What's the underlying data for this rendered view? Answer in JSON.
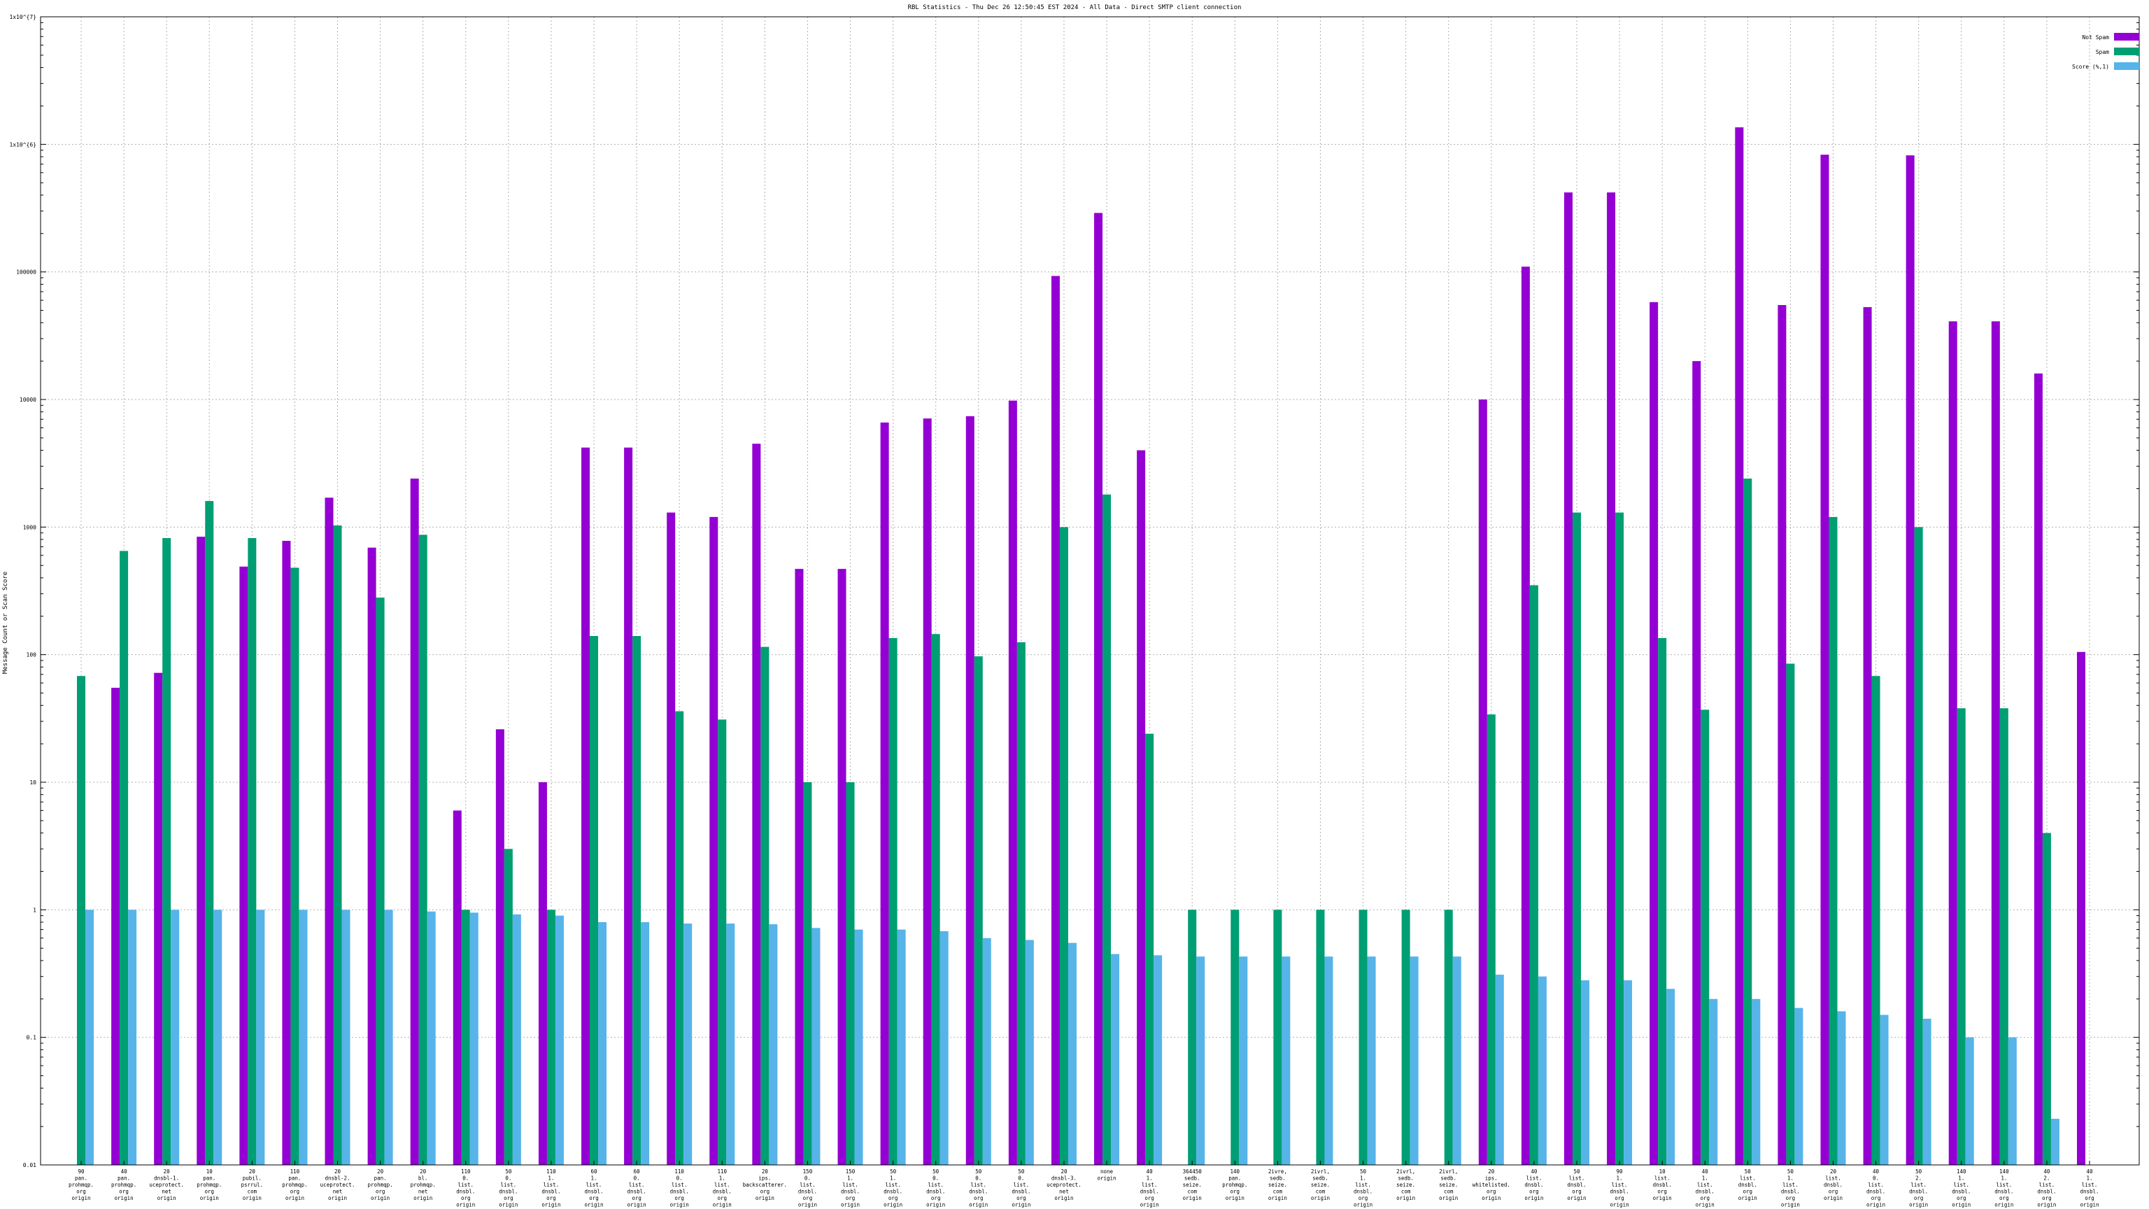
{
  "chart_data": {
    "type": "bar",
    "title": "RBL Statistics - Thu Dec 26 12:50:45 EST 2024 - All Data - Direct SMTP client connection",
    "ylabel": "Message Count or Scan Score",
    "yscale": "log",
    "ylim": [
      0.01,
      10000000
    ],
    "ytick_labels": [
      "0.01",
      "0.1",
      "1",
      "10",
      "100",
      "1000",
      "10000",
      "100000",
      "1x10^{6}",
      "1x10^{7}"
    ],
    "grid": true,
    "legend_position": "top-right",
    "categories": [
      [
        "90",
        "pan.",
        "prohmqp.",
        "org",
        "origin"
      ],
      [
        "40",
        "pan.",
        "prohmqp.",
        "org",
        "origin"
      ],
      [
        "20",
        "dnsbl-1.",
        "uceprotect.",
        "net",
        "origin"
      ],
      [
        "10",
        "pan.",
        "prohmqp.",
        "org",
        "origin"
      ],
      [
        "20",
        "pubil.",
        "psrrul.",
        "com",
        "origin"
      ],
      [
        "110",
        "pan.",
        "prohmqp.",
        "org",
        "origin"
      ],
      [
        "20",
        "dnsbl-2.",
        "uceprotect.",
        "net",
        "origin"
      ],
      [
        "20",
        "pan.",
        "prohmqp.",
        "org",
        "origin"
      ],
      [
        "20",
        "bl.",
        "prohmqp.",
        "net",
        "origin"
      ],
      [
        "110",
        "0.",
        "list.",
        "dnsbl.",
        "org",
        "origin"
      ],
      [
        "50",
        "0.",
        "list.",
        "dnsbl.",
        "org",
        "origin"
      ],
      [
        "110",
        "1.",
        "list.",
        "dnsbl.",
        "org",
        "origin"
      ],
      [
        "60",
        "1.",
        "list.",
        "dnsbl.",
        "org",
        "origin"
      ],
      [
        "60",
        "0.",
        "list.",
        "dnsbl.",
        "org",
        "origin"
      ],
      [
        "110",
        "0.",
        "list.",
        "dnsbl.",
        "org",
        "origin"
      ],
      [
        "110",
        "1.",
        "list.",
        "dnsbl.",
        "org",
        "origin"
      ],
      [
        "20",
        "ips.",
        "backscatterer.",
        "org",
        "origin"
      ],
      [
        "150",
        "0.",
        "list.",
        "dnsbl.",
        "org",
        "origin"
      ],
      [
        "150",
        "1.",
        "list.",
        "dnsbl.",
        "org",
        "origin"
      ],
      [
        "50",
        "1.",
        "list.",
        "dnsbl.",
        "org",
        "origin"
      ],
      [
        "50",
        "0.",
        "list.",
        "dnsbl.",
        "org",
        "origin"
      ],
      [
        "50",
        "0.",
        "list.",
        "dnsbl.",
        "org",
        "origin"
      ],
      [
        "50",
        "0.",
        "list.",
        "dnsbl.",
        "org",
        "origin"
      ],
      [
        "20",
        "dnsbl-3.",
        "uceprotect.",
        "net",
        "origin"
      ],
      [
        "none",
        "origin"
      ],
      [
        "40",
        "1.",
        "list.",
        "dnsbl.",
        "org",
        "origin"
      ],
      [
        "364450",
        "sedb.",
        "seize.",
        "com",
        "origin"
      ],
      [
        "140",
        "pan.",
        "prohmqp.",
        "org",
        "origin"
      ],
      [
        "2ivre,",
        "sedb.",
        "seize.",
        "com",
        "origin"
      ],
      [
        "2ivrl,",
        "sedb.",
        "seize.",
        "com",
        "origin"
      ],
      [
        "50",
        "1.",
        "list.",
        "dnsbl.",
        "org",
        "origin"
      ],
      [
        "2ivrl,",
        "sedb.",
        "seize.",
        "com",
        "origin"
      ],
      [
        "2ivrl,",
        "sedb.",
        "seize.",
        "com",
        "origin"
      ],
      [
        "20",
        "ips.",
        "whitelisted.",
        "org",
        "origin"
      ],
      [
        "40",
        "list.",
        "dnsbl.",
        "org",
        "origin"
      ],
      [
        "50",
        "list.",
        "dnsbl.",
        "org",
        "origin"
      ],
      [
        "90",
        "1.",
        "list.",
        "dnsbl.",
        "org",
        "origin"
      ],
      [
        "10",
        "list.",
        "dnsbl.",
        "org",
        "origin"
      ],
      [
        "40",
        "1.",
        "list.",
        "dnsbl.",
        "org",
        "origin"
      ],
      [
        "50",
        "list.",
        "dnsbl.",
        "org",
        "origin"
      ],
      [
        "50",
        "1.",
        "list.",
        "dnsbl.",
        "org",
        "origin"
      ],
      [
        "20",
        "list.",
        "dnsbl.",
        "org",
        "origin"
      ],
      [
        "40",
        "0.",
        "list.",
        "dnsbl.",
        "org",
        "origin"
      ],
      [
        "50",
        "2.",
        "list.",
        "dnsbl.",
        "org",
        "origin"
      ],
      [
        "140",
        "1.",
        "list.",
        "dnsbl.",
        "org",
        "origin"
      ],
      [
        "140",
        "1.",
        "list.",
        "dnsbl.",
        "org",
        "origin"
      ],
      [
        "40",
        "2.",
        "list.",
        "dnsbl.",
        "org",
        "origin"
      ],
      [
        "40",
        "1.",
        "list.",
        "dnsbl.",
        "org",
        "origin"
      ]
    ],
    "series": [
      {
        "name": "Not Spam",
        "color": "#9400d3",
        "values": [
          null,
          55,
          72,
          840,
          490,
          780,
          1700,
          690,
          2400,
          6,
          26,
          10,
          4200,
          4200,
          1300,
          1200,
          4500,
          470,
          470,
          6600,
          7100,
          7400,
          9800,
          93000,
          290000,
          4000,
          null,
          null,
          null,
          null,
          null,
          null,
          null,
          10000,
          110000,
          420000,
          420000,
          58000,
          20000,
          1360000,
          55000,
          830000,
          53000,
          820000,
          41000,
          41000,
          16000,
          105
        ]
      },
      {
        "name": "Spam",
        "color": "#009e73",
        "values": [
          68,
          650,
          820,
          1600,
          820,
          480,
          1030,
          280,
          870,
          1,
          3,
          1,
          140,
          140,
          36,
          31,
          115,
          10,
          10,
          135,
          145,
          97,
          125,
          1000,
          1800,
          24,
          1,
          1,
          1,
          1,
          1,
          1,
          1,
          34,
          350,
          1300,
          1300,
          135,
          37,
          2400,
          85,
          1200,
          68,
          1000,
          38,
          38,
          4,
          null
        ]
      },
      {
        "name": "Score (%,1)",
        "color": "#56b4e9",
        "values": [
          1,
          1,
          1,
          1,
          1,
          1,
          1,
          1,
          0.97,
          0.95,
          0.92,
          0.9,
          0.8,
          0.8,
          0.78,
          0.78,
          0.77,
          0.72,
          0.7,
          0.7,
          0.68,
          0.6,
          0.58,
          0.55,
          0.45,
          0.44,
          0.43,
          0.43,
          0.43,
          0.43,
          0.43,
          0.43,
          0.43,
          0.31,
          0.3,
          0.28,
          0.28,
          0.24,
          0.2,
          0.2,
          0.17,
          0.16,
          0.15,
          0.14,
          0.1,
          0.1,
          0.023,
          null
        ]
      }
    ]
  }
}
